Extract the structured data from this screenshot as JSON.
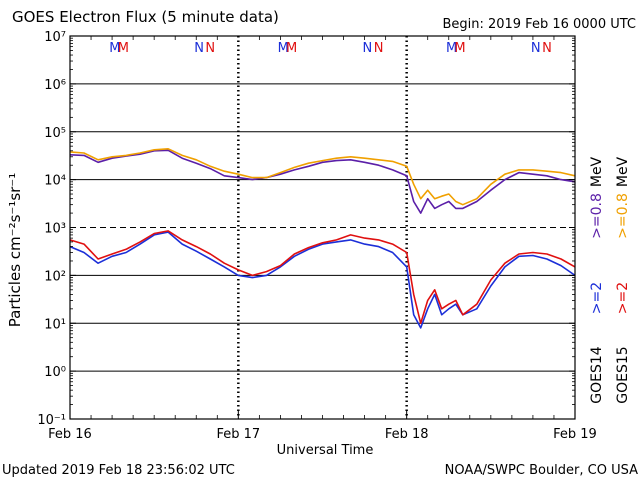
{
  "title": "GOES Electron Flux (5 minute data)",
  "begin_label": "Begin: 2019 Feb 16 0000 UTC",
  "updated_label": "Updated 2019 Feb 18 23:56:02 UTC",
  "credit_label": "NOAA/SWPC Boulder, CO USA",
  "marker_letters": {
    "m14": "M",
    "m15": "M",
    "n14": "N",
    "n15": "N"
  },
  "right_legend": {
    "goes14": "GOES14",
    "goes15": "GOES15",
    "goes14_ge08": ">=0.8",
    "goes15_ge08": ">=0.8",
    "goes14_ge2": ">=2",
    "goes15_ge2": ">=2",
    "mev": "MeV"
  },
  "colors": {
    "goes14_ge08": "#5b1fa8",
    "goes15_ge08": "#f0a000",
    "goes14_ge2": "#1c2fd8",
    "goes15_ge2": "#e01010",
    "marker_m": "#e01010",
    "marker_m14": "#1c2fd8",
    "axis": "#000000"
  },
  "chart_data": {
    "type": "line",
    "title": "GOES Electron Flux (5 minute data)",
    "xlabel": "Universal Time",
    "ylabel": "Particles cm⁻²s⁻¹sr⁻¹",
    "y_scale": "log",
    "ylim": [
      0.1,
      10000000
    ],
    "xlim_hours": [
      0,
      72
    ],
    "x_ticks": [
      {
        "hour": 0,
        "label": "Feb 16"
      },
      {
        "hour": 24,
        "label": "Feb 17"
      },
      {
        "hour": 48,
        "label": "Feb 18"
      },
      {
        "hour": 72,
        "label": "Feb 19"
      }
    ],
    "y_ticks": [
      {
        "exp": -1,
        "label": "10⁻¹"
      },
      {
        "exp": 0,
        "label": "10⁰"
      },
      {
        "exp": 1,
        "label": "10¹"
      },
      {
        "exp": 2,
        "label": "10²"
      },
      {
        "exp": 3,
        "label": "10³"
      },
      {
        "exp": 4,
        "label": "10⁴"
      },
      {
        "exp": 5,
        "label": "10⁵"
      },
      {
        "exp": 6,
        "label": "10⁶"
      },
      {
        "exp": 7,
        "label": "10⁷"
      }
    ],
    "threshold": 1000,
    "gridlines_y": [
      0,
      1,
      2,
      4,
      5,
      6
    ],
    "hours": [
      0,
      2,
      4,
      6,
      8,
      10,
      12,
      14,
      16,
      18,
      20,
      22,
      24,
      26,
      28,
      30,
      32,
      34,
      36,
      38,
      40,
      42,
      44,
      46,
      48,
      49,
      50,
      51,
      52,
      53,
      54,
      55,
      56,
      58,
      60,
      62,
      64,
      66,
      68,
      70,
      72
    ],
    "series": [
      {
        "key": "goes14_ge08",
        "values": [
          33000,
          32000,
          23000,
          28000,
          31000,
          34000,
          40000,
          41000,
          28000,
          22000,
          17000,
          12000,
          11000,
          10000,
          11000,
          13000,
          16000,
          19000,
          23000,
          25000,
          26000,
          23000,
          20000,
          16000,
          12000,
          3500,
          2000,
          4000,
          2500,
          3000,
          3500,
          2500,
          2500,
          3500,
          6000,
          10000,
          14000,
          13000,
          12000,
          10000,
          9000
        ]
      },
      {
        "key": "goes15_ge08",
        "values": [
          38000,
          36000,
          26000,
          30000,
          32000,
          36000,
          42000,
          44000,
          32000,
          26000,
          19000,
          15000,
          13000,
          11000,
          11000,
          14000,
          18000,
          22000,
          25000,
          28000,
          30000,
          28000,
          26000,
          24000,
          19000,
          8000,
          4000,
          6000,
          4000,
          4500,
          5000,
          3500,
          3000,
          4000,
          8000,
          13000,
          16000,
          16000,
          15000,
          14000,
          12000
        ]
      },
      {
        "key": "goes14_ge2",
        "values": [
          400,
          300,
          180,
          250,
          300,
          450,
          700,
          800,
          450,
          320,
          220,
          150,
          100,
          90,
          100,
          150,
          250,
          350,
          450,
          500,
          550,
          450,
          400,
          300,
          150,
          15,
          8,
          20,
          40,
          15,
          20,
          25,
          15,
          20,
          60,
          150,
          250,
          260,
          220,
          160,
          100
        ]
      },
      {
        "key": "goes15_ge2",
        "values": [
          550,
          450,
          220,
          280,
          350,
          500,
          750,
          850,
          550,
          400,
          280,
          180,
          130,
          100,
          120,
          160,
          280,
          380,
          480,
          550,
          700,
          600,
          550,
          450,
          300,
          40,
          10,
          30,
          50,
          20,
          25,
          30,
          15,
          25,
          80,
          180,
          280,
          300,
          280,
          220,
          150
        ]
      }
    ],
    "markers": [
      {
        "hour": 6.4,
        "key": "m14"
      },
      {
        "hour": 7.6,
        "key": "m15"
      },
      {
        "hour": 18.4,
        "key": "n14"
      },
      {
        "hour": 20.0,
        "key": "n15"
      },
      {
        "hour": 30.4,
        "key": "m14"
      },
      {
        "hour": 31.6,
        "key": "m15"
      },
      {
        "hour": 42.4,
        "key": "n14"
      },
      {
        "hour": 44.0,
        "key": "n15"
      },
      {
        "hour": 54.4,
        "key": "m14"
      },
      {
        "hour": 55.6,
        "key": "m15"
      },
      {
        "hour": 66.4,
        "key": "n14"
      },
      {
        "hour": 68.0,
        "key": "n15"
      }
    ]
  }
}
